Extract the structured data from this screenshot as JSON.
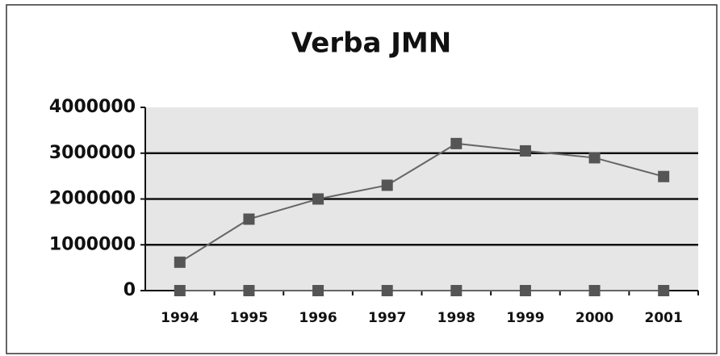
{
  "chart_data": {
    "type": "line",
    "title": "Verba JMN",
    "categories": [
      "1994",
      "1995",
      "1996",
      "1997",
      "1998",
      "1999",
      "2000",
      "2001"
    ],
    "series": [
      {
        "color": "#555555",
        "values": [
          620000,
          1560000,
          2000000,
          2300000,
          3210000,
          3050000,
          2900000,
          2490000
        ]
      },
      {
        "color": "#555555",
        "values": [
          0,
          0,
          0,
          0,
          0,
          0,
          0,
          0
        ]
      }
    ],
    "ylim": [
      0,
      4000000
    ],
    "yticks": [
      0,
      1000000,
      2000000,
      3000000,
      4000000
    ],
    "grid": true
  }
}
